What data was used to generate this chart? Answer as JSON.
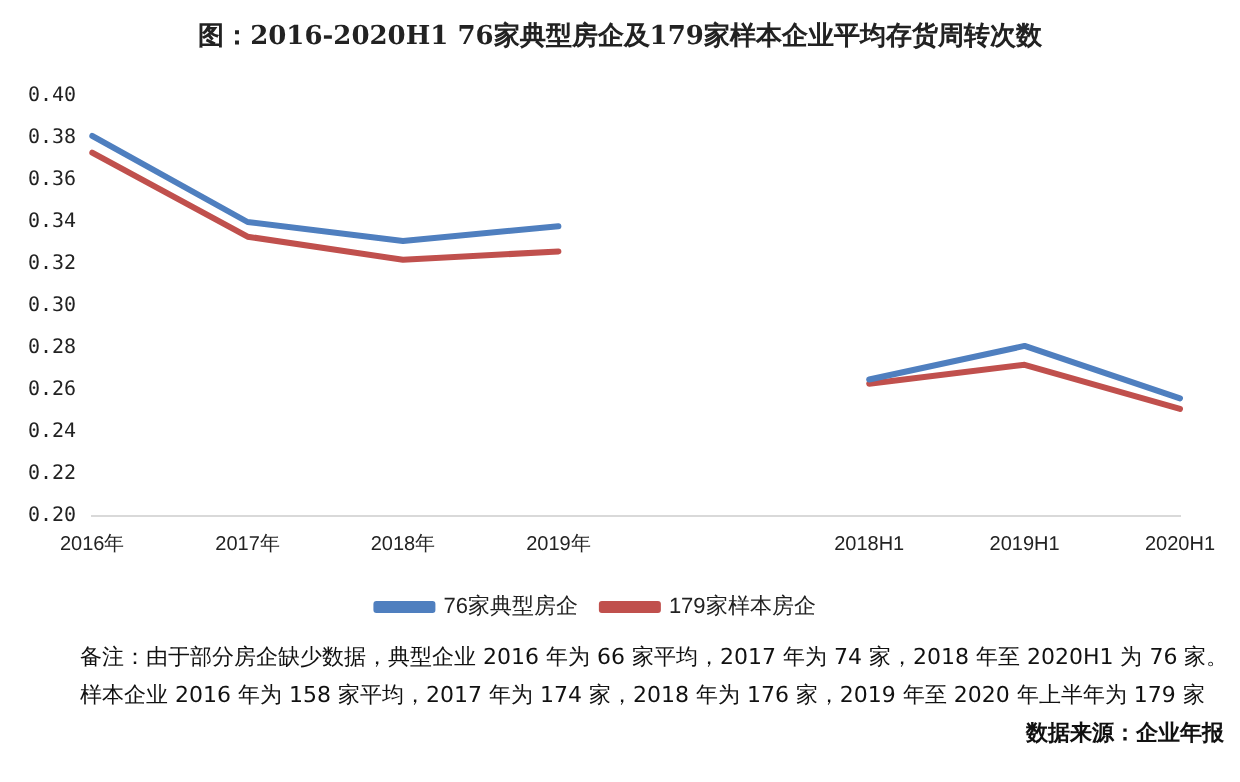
{
  "chart_data": {
    "type": "line",
    "title": "图：2016-2020H1 76家典型房企及179家样本企业平均存货周转次数",
    "categories": [
      "2016年",
      "2017年",
      "2018年",
      "2019年",
      null,
      "2018H1",
      "2019H1",
      "2020H1"
    ],
    "series": [
      {
        "name": "76家典型房企",
        "color": "#4f7fbf",
        "values": [
          0.381,
          0.34,
          0.331,
          0.338,
          null,
          0.265,
          0.281,
          0.256
        ]
      },
      {
        "name": "179家样本房企",
        "color": "#c0504d",
        "values": [
          0.373,
          0.333,
          0.322,
          0.326,
          null,
          0.263,
          0.272,
          0.251
        ]
      }
    ],
    "ylim": [
      0.2,
      0.4
    ],
    "yticks": [
      {
        "value": 0.2,
        "label": "0.20"
      },
      {
        "value": 0.22,
        "label": "0.22"
      },
      {
        "value": 0.24,
        "label": "0.24"
      },
      {
        "value": 0.26,
        "label": "0.26"
      },
      {
        "value": 0.28,
        "label": "0.28"
      },
      {
        "value": 0.3,
        "label": "0.30"
      },
      {
        "value": 0.32,
        "label": "0.32"
      },
      {
        "value": 0.34,
        "label": "0.34"
      },
      {
        "value": 0.36,
        "label": "0.36"
      },
      {
        "value": 0.38,
        "label": "0.38"
      },
      {
        "value": 0.4,
        "label": "0.40"
      }
    ],
    "grid": false,
    "legend": "bottom",
    "marker": "none",
    "line_style": "solid",
    "annotations": [
      "备注：由于部分房企缺少数据，典型企业 2016 年为 66 家平均，2017 年为 74 家，2018 年至 2020H1 为 76 家。",
      "样本企业 2016 年为 158 家平均，2017 年为 174 家，2018 年为 176 家，2019 年至 2020 年上半年为 179 家",
      "数据来源：企业年报"
    ]
  }
}
